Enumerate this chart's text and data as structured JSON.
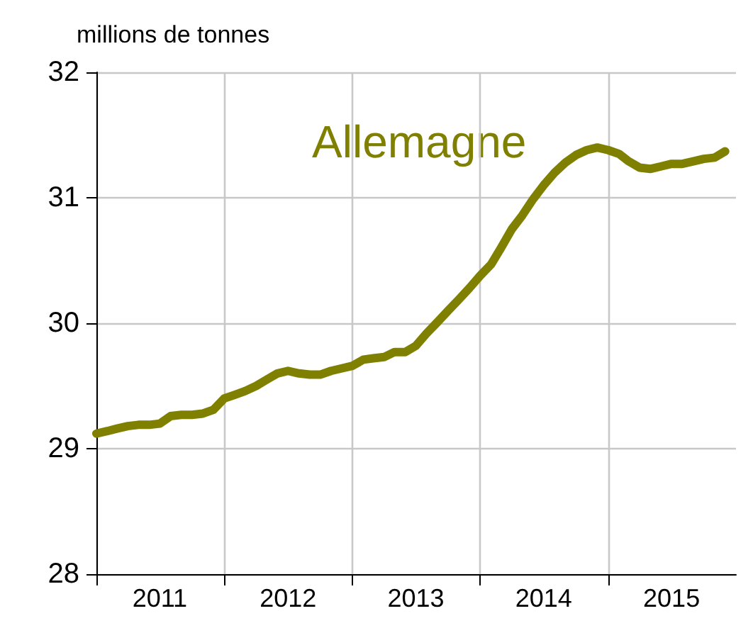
{
  "chart_data": {
    "type": "line",
    "ylabel": "millions de tonnes",
    "x": [
      "2011-01",
      "2011-02",
      "2011-03",
      "2011-04",
      "2011-05",
      "2011-06",
      "2011-07",
      "2011-08",
      "2011-09",
      "2011-10",
      "2011-11",
      "2011-12",
      "2012-01",
      "2012-02",
      "2012-03",
      "2012-04",
      "2012-05",
      "2012-06",
      "2012-07",
      "2012-08",
      "2012-09",
      "2012-10",
      "2012-11",
      "2012-12",
      "2013-01",
      "2013-02",
      "2013-03",
      "2013-04",
      "2013-05",
      "2013-06",
      "2013-07",
      "2013-08",
      "2013-09",
      "2013-10",
      "2013-11",
      "2013-12",
      "2014-01",
      "2014-02",
      "2014-03",
      "2014-04",
      "2014-05",
      "2014-06",
      "2014-07",
      "2014-08",
      "2014-09",
      "2014-10",
      "2014-11",
      "2014-12",
      "2015-01",
      "2015-02",
      "2015-03",
      "2015-04",
      "2015-05",
      "2015-06",
      "2015-07",
      "2015-08",
      "2015-09",
      "2015-10",
      "2015-11",
      "2015-12"
    ],
    "series": [
      {
        "name": "Allemagne",
        "color": "#808000",
        "values": [
          29.12,
          29.14,
          29.16,
          29.18,
          29.19,
          29.19,
          29.2,
          29.26,
          29.27,
          29.27,
          29.28,
          29.31,
          29.4,
          29.43,
          29.46,
          29.5,
          29.55,
          29.6,
          29.62,
          29.6,
          29.59,
          29.59,
          29.62,
          29.64,
          29.66,
          29.71,
          29.72,
          29.73,
          29.77,
          29.77,
          29.82,
          29.92,
          30.01,
          30.1,
          30.19,
          30.28,
          30.38,
          30.47,
          30.6,
          30.75,
          30.86,
          30.99,
          31.1,
          31.2,
          31.28,
          31.34,
          31.38,
          31.4,
          31.38,
          31.35,
          31.29,
          31.24,
          31.23,
          31.25,
          31.27,
          31.27,
          31.29,
          31.31,
          31.32,
          31.37
        ]
      }
    ],
    "xlim": [
      "2011-01",
      "2016-01"
    ],
    "xticks": [
      {
        "value": "2011-01",
        "label": null
      },
      {
        "value": "2011-07",
        "label": "2011"
      },
      {
        "value": "2012-01",
        "label": null
      },
      {
        "value": "2012-07",
        "label": "2012"
      },
      {
        "value": "2013-01",
        "label": null
      },
      {
        "value": "2013-07",
        "label": "2013"
      },
      {
        "value": "2014-01",
        "label": null
      },
      {
        "value": "2014-07",
        "label": "2014"
      },
      {
        "value": "2015-01",
        "label": null
      },
      {
        "value": "2015-07",
        "label": "2015"
      }
    ],
    "ylim": [
      28,
      32
    ],
    "yticks": [
      28,
      29,
      30,
      31,
      32
    ],
    "grid": true,
    "legend": false,
    "marker": "none",
    "line_style": "solid"
  }
}
